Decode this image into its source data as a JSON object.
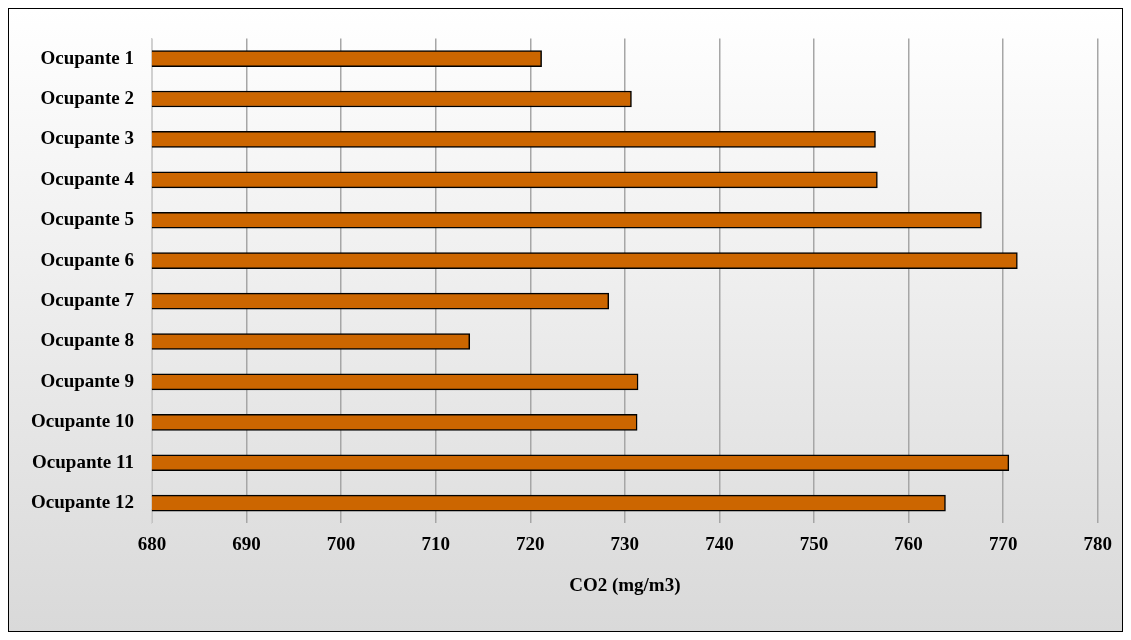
{
  "chart_data": {
    "type": "bar",
    "orientation": "horizontal",
    "xlabel": "CO2 (mg/m3)",
    "categories": [
      "Ocupante 1",
      "Ocupante 2",
      "Ocupante 3",
      "Ocupante 4",
      "Ocupante 5",
      "Ocupante 6",
      "Ocupante 7",
      "Ocupante 8",
      "Ocupante 9",
      "Ocupante 10",
      "Ocupante 11",
      "Ocupante 12"
    ],
    "values": [
      721.2,
      730.7,
      756.5,
      756.7,
      767.7,
      771.5,
      728.3,
      713.6,
      731.4,
      731.3,
      770.6,
      763.9
    ],
    "color": "#cc6600",
    "xlim": [
      680,
      780
    ],
    "xticks": [
      680,
      690,
      700,
      710,
      720,
      730,
      740,
      750,
      760,
      770,
      780
    ],
    "grid": "x",
    "legend": false
  }
}
